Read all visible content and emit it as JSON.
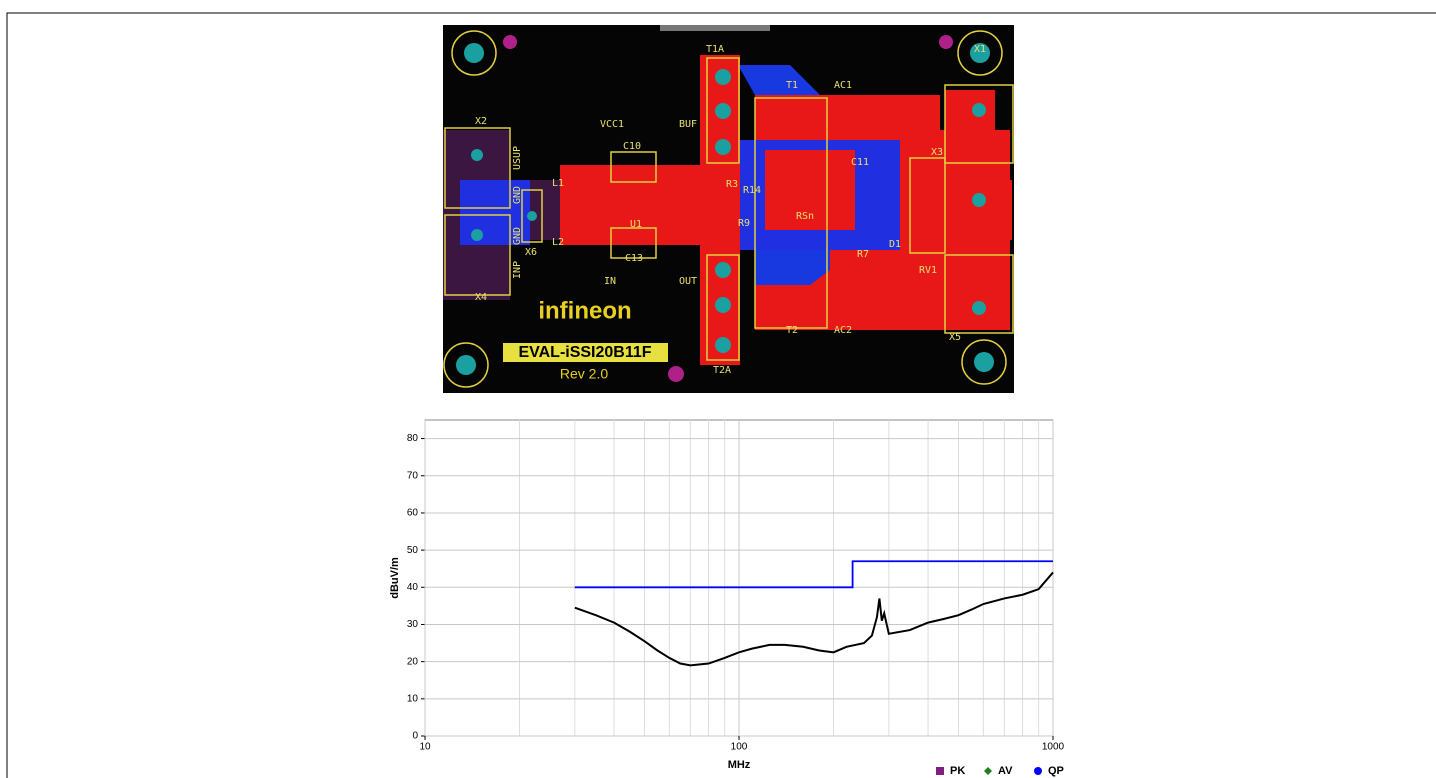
{
  "board": {
    "brand": "infineon",
    "name": "EVAL-iSSI20B11F",
    "revision": "Rev 2.0",
    "labels": [
      "X2",
      "USUP",
      "GND",
      "GND",
      "INP",
      "X4",
      "X6",
      "L1",
      "L2",
      "VCC1",
      "BUF",
      "C10",
      "C13",
      "IN",
      "OUT",
      "U1",
      "T1A",
      "T2A",
      "T1",
      "T2",
      "AC1",
      "AC2",
      "C11",
      "R3",
      "R14",
      "R9",
      "RSn",
      "R7",
      "D1",
      "X3",
      "RV1",
      "X1",
      "X5"
    ]
  },
  "chart_data": {
    "type": "line",
    "x_label": "MHz",
    "y_label": "dBuV/m",
    "log_x": true,
    "grid": true,
    "xlim": [
      10,
      1000
    ],
    "xticks": [
      10,
      100,
      1000
    ],
    "ylim": [
      0,
      85
    ],
    "yticks": [
      0,
      10,
      20,
      30,
      40,
      50,
      60,
      70,
      80
    ],
    "series": [
      {
        "color": "#0000ff",
        "x": [
          30,
          230,
          230,
          1000
        ],
        "values": [
          40,
          40,
          47,
          47
        ]
      },
      {
        "color": "#000000",
        "x": [
          30,
          35,
          40,
          45,
          50,
          55,
          60,
          65,
          70,
          80,
          90,
          100,
          110,
          125,
          140,
          160,
          180,
          200,
          220,
          250,
          265,
          275,
          280,
          285,
          290,
          300,
          350,
          400,
          450,
          500,
          550,
          600,
          700,
          800,
          900,
          1000
        ],
        "values": [
          34.5,
          32.5,
          30.5,
          28,
          25.5,
          23,
          21,
          19.5,
          19,
          19.5,
          21,
          22.5,
          23.5,
          24.5,
          24.5,
          24,
          23,
          22.5,
          24,
          25,
          27,
          32,
          37,
          31,
          33,
          27.5,
          28.5,
          30.5,
          31.5,
          32.5,
          34,
          35.5,
          37,
          38,
          39.5,
          44
        ]
      }
    ],
    "legend": [
      {
        "name": "PK",
        "color": "#7f1f7f"
      },
      {
        "name": "AV",
        "color": "#1f7f1f"
      },
      {
        "name": "QP",
        "color": "#0000ff"
      }
    ]
  }
}
